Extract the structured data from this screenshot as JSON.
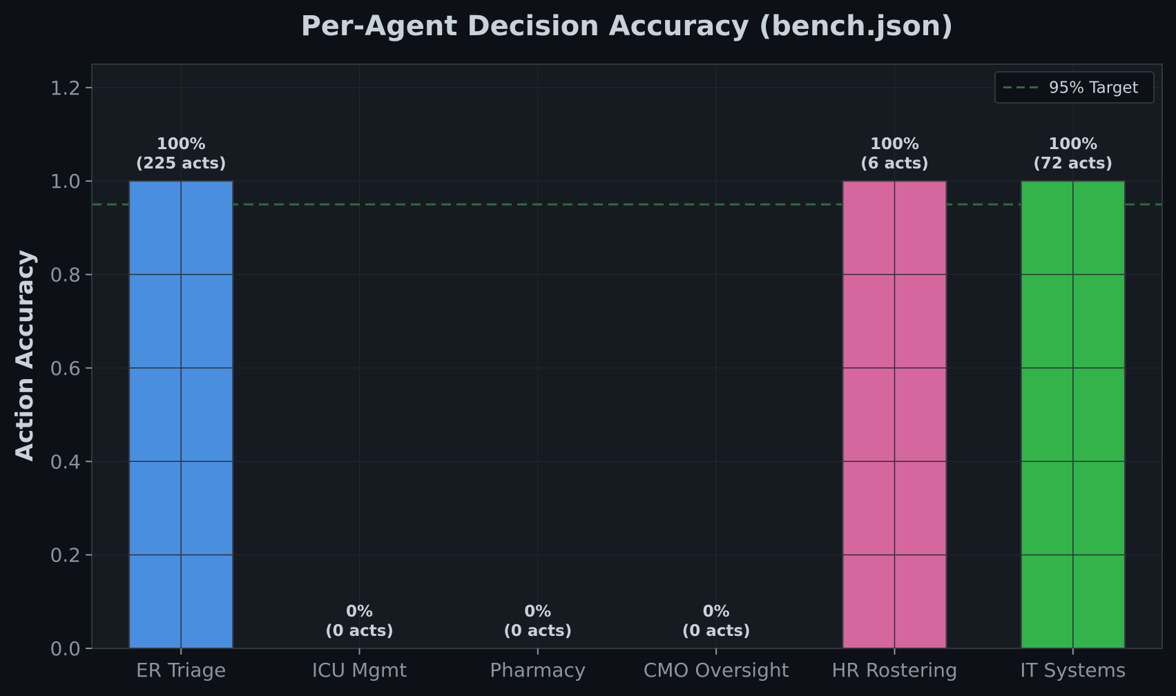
{
  "chart_data": {
    "type": "bar",
    "title": "Per-Agent Decision Accuracy (bench.json)",
    "xlabel": "",
    "ylabel": "Action Accuracy",
    "categories": [
      "ER Triage",
      "ICU Mgmt",
      "Pharmacy",
      "CMO Oversight",
      "HR Rostering",
      "IT Systems"
    ],
    "values": [
      1.0,
      0.0,
      0.0,
      0.0,
      1.0,
      1.0
    ],
    "bar_labels": [
      [
        "100%",
        "(225 acts)"
      ],
      [
        "0%",
        "(0 acts)"
      ],
      [
        "0%",
        "(0 acts)"
      ],
      [
        "0%",
        "(0 acts)"
      ],
      [
        "100%",
        "(6 acts)"
      ],
      [
        "100%",
        "(72 acts)"
      ]
    ],
    "bar_colors": [
      "#4a8fdf",
      "#4a8fdf",
      "#4a8fdf",
      "#4a8fdf",
      "#d6679e",
      "#33b34a"
    ],
    "ylim": [
      0,
      1.25
    ],
    "yticks": [
      0.0,
      0.2,
      0.4,
      0.6,
      0.8,
      1.0,
      1.2
    ],
    "ytick_labels": [
      "0.0",
      "0.2",
      "0.4",
      "0.6",
      "0.8",
      "1.0",
      "1.2"
    ],
    "grid": true,
    "reference_line": {
      "value": 0.95,
      "label": "95% Target",
      "color": "#2f6b3a",
      "style": "dashed"
    },
    "legend": {
      "position": "top-right",
      "entries": [
        "95% Target"
      ]
    }
  },
  "colors": {
    "page_background": "#0d1117",
    "plot_background": "#161b22",
    "grid": "#222831",
    "axis": "#30363d",
    "text": "#c9d1d9",
    "tick_text": "#8b949e"
  }
}
